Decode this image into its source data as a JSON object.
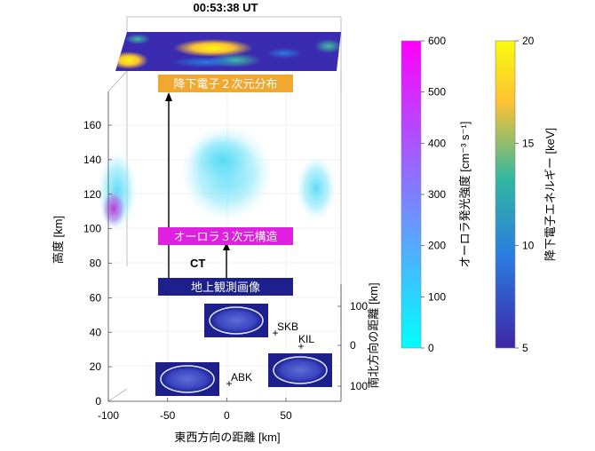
{
  "chart_data": {
    "type": "3d-volume",
    "title": "00:53:38 UT",
    "axes": {
      "z_label": "高度 [km]",
      "z_ticks": [
        "0",
        "20",
        "40",
        "60",
        "80",
        "100",
        "120",
        "140",
        "160"
      ],
      "x_label": "東西方向の距離 [km]",
      "x_ticks": [
        "-100",
        "-50",
        "0",
        "50"
      ],
      "y_label": "南北方向の距離 [km]",
      "y_ticks": [
        "100",
        "0",
        "100"
      ]
    },
    "labels": {
      "electron_2d": "降下電子２次元分布",
      "aurora_3d": "オーロラ３次元構造",
      "ct": "CT",
      "ground_imaging": "地上観測画像"
    },
    "stations": [
      {
        "name": "SKB"
      },
      {
        "name": "KIL"
      },
      {
        "name": "ABK"
      }
    ],
    "colorbars": [
      {
        "name": "オーロラ発光強度",
        "unit_label": "オーロラ発光強度 [cm⁻³ s⁻¹]",
        "range": [
          0,
          600
        ],
        "ticks": [
          "600",
          "500",
          "400",
          "300",
          "200",
          "100",
          "0"
        ],
        "colors": [
          "#ff00ff",
          "#00ffff"
        ]
      },
      {
        "name": "降下電子エネルギー",
        "unit_label": "降下電子エネルギー [keV]",
        "range": [
          5,
          20
        ],
        "ticks": [
          "20",
          "15",
          "10",
          "5"
        ],
        "colors": [
          "#f9fb0e",
          "#32b7a0",
          "#2a7ce0",
          "#3e26a8"
        ]
      }
    ],
    "colors": {
      "aurora_cyan": "#6fe3f5",
      "aurora_magenta": "#c02fd8",
      "label_orange": "#f0a830",
      "label_magenta": "#e020e0",
      "label_navy": "#1c1f8c",
      "electron_map_bg": "#3a2bb0"
    }
  }
}
